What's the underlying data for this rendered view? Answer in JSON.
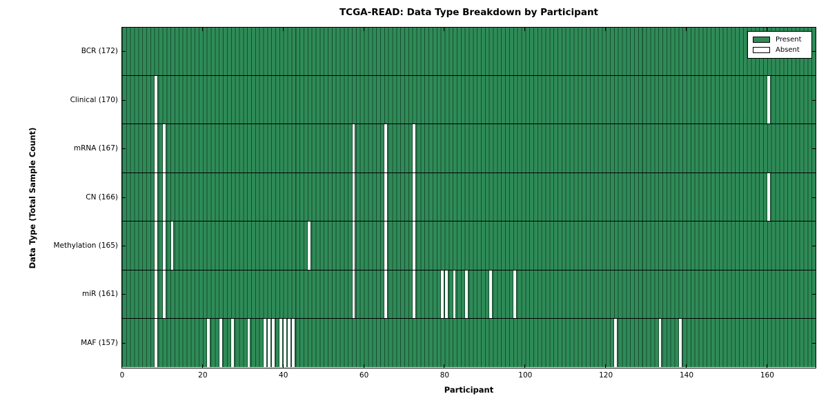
{
  "chart_data": {
    "type": "heatmap",
    "title": "TCGA-READ: Data Type Breakdown by Participant",
    "xlabel": "Participant",
    "ylabel": "Data Type (Total Sample Count)",
    "n_participants": 172,
    "x_axis": {
      "min": 0,
      "max": 172,
      "ticks": [
        0,
        20,
        40,
        60,
        80,
        100,
        120,
        140,
        160
      ]
    },
    "rows": [
      {
        "data_type": "BCR",
        "label": "BCR (172)",
        "total": 172,
        "absent_participants": []
      },
      {
        "data_type": "Clinical",
        "label": "Clinical (170)",
        "total": 170,
        "absent_participants": [
          8,
          160
        ]
      },
      {
        "data_type": "mRNA",
        "label": "mRNA (167)",
        "total": 167,
        "absent_participants": [
          8,
          10,
          57,
          65,
          72
        ]
      },
      {
        "data_type": "CN",
        "label": "CN (166)",
        "total": 166,
        "absent_participants": [
          8,
          10,
          57,
          65,
          72,
          160
        ]
      },
      {
        "data_type": "Methylation",
        "label": "Methylation (165)",
        "total": 165,
        "absent_participants": [
          8,
          10,
          12,
          46,
          57,
          65,
          72
        ]
      },
      {
        "data_type": "miR",
        "label": "miR (161)",
        "total": 161,
        "absent_participants": [
          8,
          10,
          57,
          65,
          72,
          79,
          80,
          82,
          85,
          91,
          97
        ]
      },
      {
        "data_type": "MAF",
        "label": "MAF (157)",
        "total": 157,
        "absent_participants": [
          8,
          21,
          24,
          27,
          31,
          35,
          36,
          37,
          39,
          40,
          41,
          42,
          122,
          133,
          138
        ]
      }
    ],
    "legend": [
      {
        "label": "Present",
        "color": "#2e8b57"
      },
      {
        "label": "Absent",
        "color": "#ffffff"
      }
    ],
    "colors": {
      "present": "#2e8b57",
      "absent": "#ffffff",
      "cell_edge": "#1b4b31",
      "row_divider": "#000000",
      "spine": "#000000"
    }
  }
}
